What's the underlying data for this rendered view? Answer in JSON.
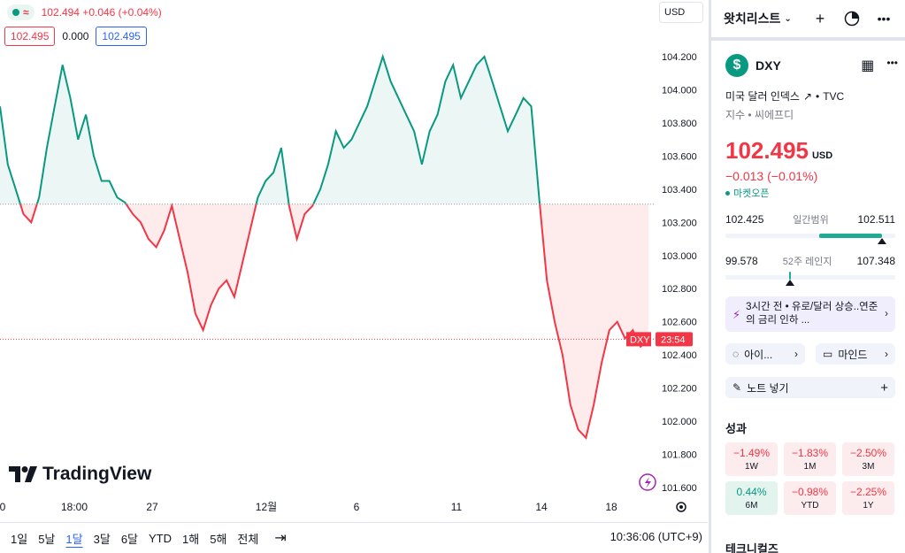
{
  "legend": {
    "change_text": "102.494 +0.046 (+0.04%)",
    "box_red": "102.495",
    "plain_value": "0.000",
    "box_blue": "102.495"
  },
  "currency": "USD",
  "price_axis": {
    "ticks": [
      "104.200",
      "104.000",
      "103.800",
      "103.600",
      "103.400",
      "103.200",
      "103.000",
      "102.800",
      "102.600",
      "102.400",
      "102.200",
      "102.000",
      "101.800",
      "101.600"
    ],
    "tick_values": [
      104.2,
      104.0,
      103.8,
      103.6,
      103.4,
      103.2,
      103.0,
      102.8,
      102.6,
      102.4,
      102.2,
      102.0,
      101.8,
      101.6
    ],
    "current_symbol": "DXY",
    "current_time": "23:54",
    "current_value": 102.495,
    "baseline_value": 103.31
  },
  "time_axis": {
    "labels": [
      "0",
      "18:00",
      "27",
      "12월",
      "6",
      "11",
      "14",
      "18"
    ]
  },
  "chart_data": {
    "type": "area",
    "title": "",
    "xlabel": "",
    "ylabel": "",
    "ylim": [
      101.5,
      104.35
    ],
    "baseline": 103.31,
    "colors": {
      "above": "#089981",
      "below": "#f23645"
    },
    "series": [
      {
        "values": [
          103.9,
          103.55,
          103.4,
          103.25,
          103.2,
          103.35,
          103.65,
          103.9,
          104.15,
          103.95,
          103.7,
          103.85,
          103.6,
          103.45,
          103.45,
          103.35,
          103.32,
          103.25,
          103.2,
          103.1,
          103.05,
          103.15,
          103.3,
          103.1,
          102.9,
          102.65,
          102.55,
          102.7,
          102.8,
          102.85,
          102.75,
          102.95,
          103.15,
          103.35,
          103.45,
          103.5,
          103.65,
          103.3,
          103.1,
          103.25,
          103.3,
          103.4,
          103.55,
          103.75,
          103.65,
          103.7,
          103.8,
          103.9,
          104.05,
          104.2,
          104.05,
          103.95,
          103.85,
          103.75,
          103.55,
          103.75,
          103.85,
          104.05,
          104.15,
          103.95,
          104.05,
          104.15,
          104.2,
          104.05,
          103.9,
          103.75,
          103.85,
          103.95,
          103.9,
          103.35,
          102.85,
          102.6,
          102.4,
          102.1,
          101.95,
          101.9,
          102.1,
          102.35,
          102.55,
          102.6,
          102.5,
          102.55,
          102.45,
          102.5
        ]
      }
    ],
    "grid": false
  },
  "logo_text": "TradingView",
  "time_ranges": [
    "1일",
    "5날",
    "1달",
    "3달",
    "6달",
    "YTD",
    "1해",
    "5해",
    "전체"
  ],
  "active_range": "1달",
  "clock": "10:36:06 (UTC+9)",
  "watchlist": {
    "title": "왓치리스트"
  },
  "symbol": {
    "logo": "$",
    "ticker": "DXY",
    "description": "미국 달러 인덱스",
    "exchange": "TVC",
    "type": "지수 • 씨에프디",
    "price": "102.495",
    "currency": "USD",
    "change": "−0.013 (−0.01%)",
    "market_status": "마켓오픈"
  },
  "day_range": {
    "low": "102.425",
    "label": "일간범위",
    "high": "102.511",
    "fill_start": 0.55,
    "fill_end": 0.92,
    "marker": 0.92
  },
  "week52_range": {
    "low": "99.578",
    "label": "52주 레인지",
    "high": "107.348",
    "marker": 0.38
  },
  "news": {
    "text": "3시간 전 • 유로/달러 상승..연준의 금리 인하 ..."
  },
  "chips": {
    "ideas": "아이...",
    "minds": "마인드"
  },
  "note": "노트 넣기",
  "performance": {
    "title": "성과",
    "items": [
      {
        "value": "−1.49%",
        "label": "1W",
        "sign": "neg"
      },
      {
        "value": "−1.83%",
        "label": "1M",
        "sign": "neg"
      },
      {
        "value": "−2.50%",
        "label": "3M",
        "sign": "neg"
      },
      {
        "value": "0.44%",
        "label": "6M",
        "sign": "pos"
      },
      {
        "value": "−0.98%",
        "label": "YTD",
        "sign": "neg"
      },
      {
        "value": "−2.25%",
        "label": "1Y",
        "sign": "neg"
      }
    ]
  },
  "technicals_title": "테크니컬즈"
}
